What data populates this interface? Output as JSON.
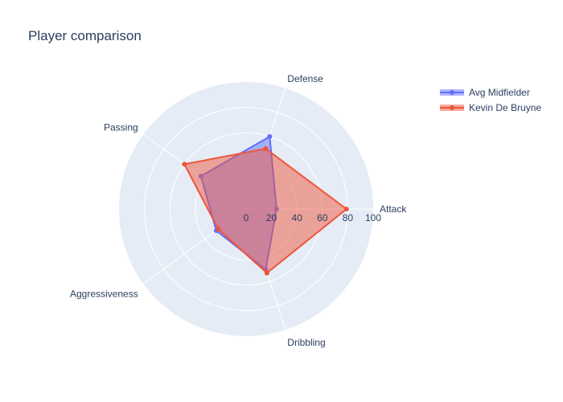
{
  "chart_data": {
    "type": "radar",
    "title": "Player comparison",
    "categories": [
      "Attack",
      "Defense",
      "Passing",
      "Aggressiveness",
      "Dribbling"
    ],
    "radial_range": [
      0,
      100
    ],
    "radial_ticks": [
      "0",
      "20",
      "40",
      "60",
      "80",
      "100"
    ],
    "radial_tick_values": [
      0,
      20,
      40,
      60,
      80,
      100
    ],
    "legend_position": "top-right",
    "series": [
      {
        "name": "Avg Midfielder",
        "values": [
          24,
          60,
          44,
          29,
          50
        ],
        "color": "#636efa"
      },
      {
        "name": "Kevin De Bruyne",
        "values": [
          79,
          50,
          60,
          27,
          53
        ],
        "color": "#ef553b"
      }
    ]
  },
  "colors": {
    "polar_bg": "#e5ecf6",
    "grid": "#ffffff"
  }
}
